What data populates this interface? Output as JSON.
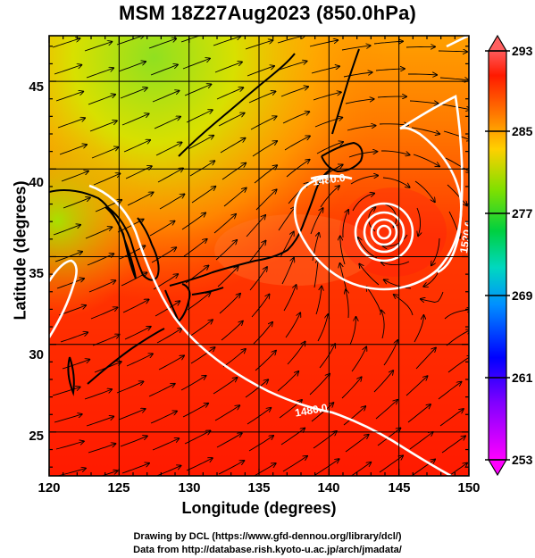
{
  "title": "MSM 18Z27Aug2023 (850.0hPa)",
  "x_axis": {
    "label": "Longitude (degrees)",
    "range": [
      120,
      150
    ],
    "ticks": [
      "120",
      "125",
      "130",
      "135",
      "140",
      "145",
      "150"
    ]
  },
  "y_axis": {
    "label": "Latitude  (degrees)",
    "range": [
      22.5,
      47.6
    ],
    "ticks": [
      "25",
      "30",
      "35",
      "40",
      "45"
    ]
  },
  "colorbar": {
    "range": [
      253,
      293
    ],
    "ticks": [
      "293",
      "285",
      "277",
      "269",
      "261",
      "253"
    ],
    "colors": [
      "#ff00ff",
      "#0000ff",
      "#00c8ff",
      "#00e060",
      "#a0e000",
      "#ffd000",
      "#ff6a00",
      "#ff1a00",
      "#ff5a5a"
    ]
  },
  "contours": [
    {
      "label": "1480.0"
    },
    {
      "label": "1480.0"
    },
    {
      "label": "1520.0"
    }
  ],
  "features": {
    "low_center": {
      "lon": 143.7,
      "lat": 37.3
    }
  },
  "credits": {
    "line1": "Drawing by DCL (https://www.gfd-dennou.org/library/dcl/)",
    "line2": "Data from http://database.rish.kyoto-u.ac.jp/arch/jmadata/"
  }
}
